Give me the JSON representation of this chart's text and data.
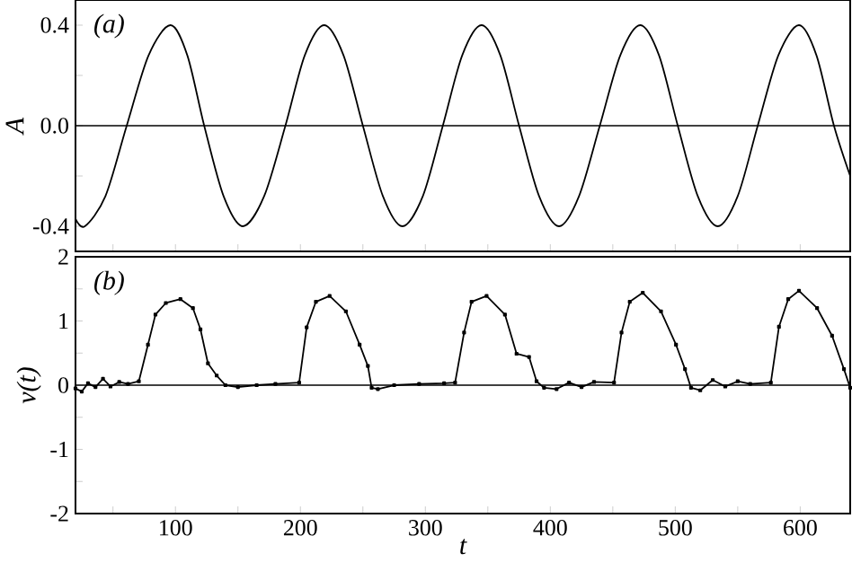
{
  "chart_data": [
    {
      "type": "line",
      "ylabel": "A",
      "annotations": [
        "(a)"
      ],
      "tick_labels": "y",
      "marker": "none",
      "line_style": "solid",
      "xlim": [
        20,
        640
      ],
      "ylim": [
        -0.5,
        0.5
      ],
      "xticks": [
        {
          "value": 50,
          "label": null
        },
        100,
        {
          "value": 150,
          "label": null
        },
        200,
        {
          "value": 250,
          "label": null
        },
        300,
        {
          "value": 350,
          "label": null
        },
        400,
        {
          "value": 450,
          "label": null
        },
        500,
        {
          "value": 550,
          "label": null
        },
        600
      ],
      "yticks": [
        -0.4,
        {
          "value": -0.2,
          "label": null
        },
        {
          "value": 0,
          "label": "0.0"
        },
        {
          "value": 0.2,
          "label": null
        },
        0.4
      ],
      "ref_lines": [
        {
          "axis": "y",
          "value": 0,
          "color": "#000000"
        }
      ],
      "series": [
        {
          "color": "#000000",
          "x": [
            20,
            27.5,
            44,
            61,
            78.5,
            96,
            109.5,
            123,
            138.5,
            154,
            171,
            188,
            203.5,
            219,
            234.5,
            250,
            266,
            281.6,
            298,
            314,
            329.5,
            345,
            360,
            375,
            391,
            407,
            423,
            439.6,
            456,
            472,
            487,
            502,
            518,
            534,
            550,
            566,
            582.5,
            599,
            613,
            627,
            640
          ],
          "values": [
            -0.37,
            -0.4,
            -0.28,
            0,
            0.28,
            0.4,
            0.28,
            0,
            -0.28,
            -0.4,
            -0.28,
            0,
            0.28,
            0.4,
            0.28,
            0,
            -0.28,
            -0.4,
            -0.28,
            0,
            0.28,
            0.4,
            0.28,
            0,
            -0.28,
            -0.4,
            -0.28,
            0,
            0.28,
            0.4,
            0.28,
            0,
            -0.28,
            -0.4,
            -0.28,
            0,
            0.28,
            0.4,
            0.28,
            0,
            -0.2
          ]
        }
      ]
    },
    {
      "type": "line",
      "xlabel": "t",
      "ylabel": "v(t)",
      "annotations": [
        "(b)"
      ],
      "marker": "square",
      "line_style": "solid",
      "xlim": [
        20,
        640
      ],
      "ylim": [
        -2,
        2
      ],
      "xticks": [
        {
          "value": 50,
          "label": null
        },
        100,
        {
          "value": 150,
          "label": null
        },
        200,
        {
          "value": 250,
          "label": null
        },
        300,
        {
          "value": 350,
          "label": null
        },
        400,
        {
          "value": 450,
          "label": null
        },
        500,
        {
          "value": 550,
          "label": null
        },
        600
      ],
      "yticks": [
        -2,
        {
          "value": -1.5,
          "label": null
        },
        -1,
        {
          "value": -0.5,
          "label": null
        },
        0,
        {
          "value": 0.5,
          "label": null
        },
        1,
        {
          "value": 1.5,
          "label": null
        },
        2
      ],
      "ref_lines": [
        {
          "axis": "y",
          "value": 0,
          "color": "#000000"
        }
      ],
      "series": [
        {
          "color": "#000000",
          "x": [
            20,
            25,
            30,
            36,
            42,
            48,
            55,
            62,
            70.7,
            78,
            84,
            92.3,
            104,
            114,
            120,
            126,
            133,
            140,
            150,
            165,
            180,
            199,
            205,
            212.4,
            223.4,
            236.4,
            247.4,
            254,
            257,
            262,
            275,
            295,
            315,
            323.8,
            331,
            337,
            349,
            363.7,
            373,
            383,
            389,
            395,
            405,
            415,
            425,
            435,
            451,
            457,
            463.6,
            474,
            488.6,
            500.6,
            507.8,
            512.6,
            520,
            530,
            540,
            550,
            560,
            576.5,
            583,
            590.4,
            599,
            613.5,
            625.5,
            635,
            640
          ],
          "values": [
            -0.05,
            -0.1,
            0.03,
            -0.03,
            0.1,
            -0.02,
            0.05,
            0.02,
            0.06,
            0.63,
            1.1,
            1.28,
            1.34,
            1.2,
            0.87,
            0.34,
            0.15,
            0,
            -0.03,
            0,
            0.02,
            0.04,
            0.9,
            1.3,
            1.39,
            1.15,
            0.63,
            0.3,
            -0.04,
            -0.06,
            0,
            0.02,
            0.03,
            0.04,
            0.82,
            1.3,
            1.39,
            1.1,
            0.49,
            0.44,
            0.06,
            -0.04,
            -0.06,
            0.04,
            -0.03,
            0.05,
            0.04,
            0.82,
            1.3,
            1.44,
            1.15,
            0.63,
            0.25,
            -0.04,
            -0.08,
            0.08,
            -0.02,
            0.06,
            0.02,
            0.04,
            0.91,
            1.34,
            1.47,
            1.2,
            0.77,
            0.25,
            -0.04
          ]
        }
      ]
    }
  ]
}
